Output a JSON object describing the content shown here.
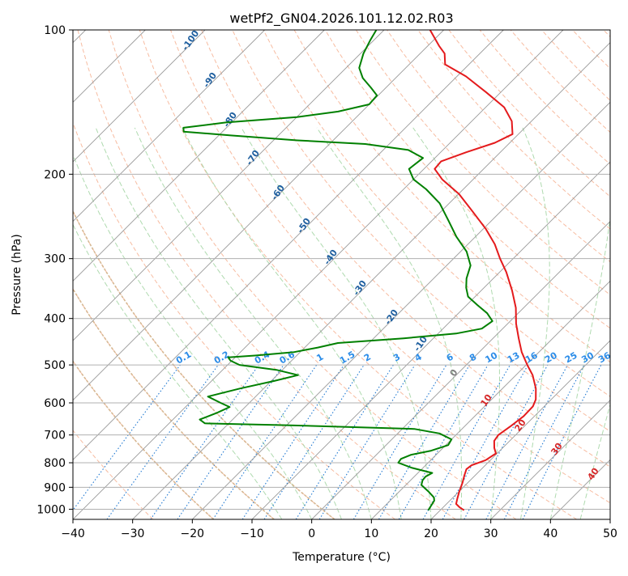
{
  "chart_data": {
    "type": "skew-t",
    "title": "wetPf2_GN04.2026.101.12.02.R03",
    "xlabel": "Temperature (°C)",
    "ylabel": "Pressure (hPa)",
    "xlim": [
      -40,
      50
    ],
    "ylim_hpa": [
      1050,
      100
    ],
    "x_ticks": [
      "−40",
      "−30",
      "−20",
      "−10",
      "0",
      "10",
      "20",
      "30",
      "40",
      "50"
    ],
    "x_tick_values": [
      -40,
      -30,
      -20,
      -10,
      0,
      10,
      20,
      30,
      40,
      50
    ],
    "y_ticks": [
      "100",
      "200",
      "300",
      "400",
      "500",
      "600",
      "700",
      "800",
      "900",
      "1000"
    ],
    "y_tick_values": [
      100,
      200,
      300,
      400,
      500,
      600,
      700,
      800,
      900,
      1000
    ],
    "grid": true,
    "colors": {
      "temperature": "#e41a1c",
      "dewpoint": "#008000",
      "isotherm": "#999999",
      "dry_adiabat": "#f4a582",
      "moist_adiabat": "#a6d6a6",
      "mixing_ratio": "#1f78d1",
      "lcl_curve": "#d2b48c",
      "potential_temp_label": "#1f5f9f",
      "isotherm_warm_label": "#d62728"
    },
    "series": [
      {
        "name": "",
        "key": "temperature",
        "points": [
          {
            "p": 1005,
            "t": 24.0
          },
          {
            "p": 990,
            "t": 22.7
          },
          {
            "p": 975,
            "t": 21.6
          },
          {
            "p": 950,
            "t": 20.9
          },
          {
            "p": 920,
            "t": 20.1
          },
          {
            "p": 880,
            "t": 19.1
          },
          {
            "p": 850,
            "t": 18.2
          },
          {
            "p": 825,
            "t": 17.5
          },
          {
            "p": 810,
            "t": 17.7
          },
          {
            "p": 790,
            "t": 19.2
          },
          {
            "p": 765,
            "t": 19.8
          },
          {
            "p": 745,
            "t": 18.6
          },
          {
            "p": 720,
            "t": 17.4
          },
          {
            "p": 700,
            "t": 17.1
          },
          {
            "p": 670,
            "t": 17.7
          },
          {
            "p": 640,
            "t": 18.2
          },
          {
            "p": 610,
            "t": 18.1
          },
          {
            "p": 590,
            "t": 17.4
          },
          {
            "p": 560,
            "t": 15.6
          },
          {
            "p": 525,
            "t": 12.8
          },
          {
            "p": 500,
            "t": 10.2
          },
          {
            "p": 470,
            "t": 7.1
          },
          {
            "p": 440,
            "t": 4.3
          },
          {
            "p": 410,
            "t": 1.4
          },
          {
            "p": 380,
            "t": -1.3
          },
          {
            "p": 350,
            "t": -4.8
          },
          {
            "p": 320,
            "t": -8.9
          },
          {
            "p": 300,
            "t": -12.2
          },
          {
            "p": 280,
            "t": -15.5
          },
          {
            "p": 260,
            "t": -19.6
          },
          {
            "p": 240,
            "t": -24.5
          },
          {
            "p": 220,
            "t": -29.9
          },
          {
            "p": 205,
            "t": -35.2
          },
          {
            "p": 195,
            "t": -38.2
          },
          {
            "p": 188,
            "t": -38.4
          },
          {
            "p": 180,
            "t": -35.7
          },
          {
            "p": 172,
            "t": -32.5
          },
          {
            "p": 165,
            "t": -31.0
          },
          {
            "p": 155,
            "t": -33.3
          },
          {
            "p": 145,
            "t": -36.9
          },
          {
            "p": 135,
            "t": -42.4
          },
          {
            "p": 125,
            "t": -48.5
          },
          {
            "p": 118,
            "t": -54.0
          },
          {
            "p": 112,
            "t": -55.9
          },
          {
            "p": 108,
            "t": -58.1
          },
          {
            "p": 100,
            "t": -62.3
          }
        ]
      },
      {
        "name": "",
        "key": "dewpoint",
        "points": [
          {
            "p": 1005,
            "t": 18.0
          },
          {
            "p": 990,
            "t": 17.8
          },
          {
            "p": 960,
            "t": 17.4
          },
          {
            "p": 945,
            "t": 16.8
          },
          {
            "p": 920,
            "t": 15.0
          },
          {
            "p": 890,
            "t": 12.6
          },
          {
            "p": 870,
            "t": 12.0
          },
          {
            "p": 855,
            "t": 11.9
          },
          {
            "p": 840,
            "t": 12.4
          },
          {
            "p": 820,
            "t": 8.2
          },
          {
            "p": 800,
            "t": 5.0
          },
          {
            "p": 785,
            "t": 4.8
          },
          {
            "p": 770,
            "t": 5.8
          },
          {
            "p": 755,
            "t": 8.5
          },
          {
            "p": 735,
            "t": 10.4
          },
          {
            "p": 715,
            "t": 10.0
          },
          {
            "p": 695,
            "t": 7.0
          },
          {
            "p": 680,
            "t": 2.0
          },
          {
            "p": 668,
            "t": -20.0
          },
          {
            "p": 662,
            "t": -34.0
          },
          {
            "p": 650,
            "t": -35.5
          },
          {
            "p": 630,
            "t": -33.8
          },
          {
            "p": 612,
            "t": -32.6
          },
          {
            "p": 600,
            "t": -34.8
          },
          {
            "p": 582,
            "t": -38.0
          },
          {
            "p": 560,
            "t": -34.0
          },
          {
            "p": 540,
            "t": -29.5
          },
          {
            "p": 525,
            "t": -26.5
          },
          {
            "p": 512,
            "t": -31.0
          },
          {
            "p": 500,
            "t": -38.0
          },
          {
            "p": 490,
            "t": -40.2
          },
          {
            "p": 482,
            "t": -41.2
          },
          {
            "p": 478,
            "t": -37.0
          },
          {
            "p": 470,
            "t": -31.0
          },
          {
            "p": 460,
            "t": -27.8
          },
          {
            "p": 450,
            "t": -25.2
          },
          {
            "p": 440,
            "t": -15.0
          },
          {
            "p": 430,
            "t": -7.0
          },
          {
            "p": 420,
            "t": -3.5
          },
          {
            "p": 405,
            "t": -3.0
          },
          {
            "p": 390,
            "t": -5.2
          },
          {
            "p": 375,
            "t": -8.2
          },
          {
            "p": 360,
            "t": -11.2
          },
          {
            "p": 345,
            "t": -13.0
          },
          {
            "p": 330,
            "t": -14.5
          },
          {
            "p": 310,
            "t": -16.0
          },
          {
            "p": 290,
            "t": -19.0
          },
          {
            "p": 270,
            "t": -23.2
          },
          {
            "p": 250,
            "t": -27.2
          },
          {
            "p": 230,
            "t": -31.6
          },
          {
            "p": 215,
            "t": -36.2
          },
          {
            "p": 205,
            "t": -40.0
          },
          {
            "p": 195,
            "t": -42.5
          },
          {
            "p": 185,
            "t": -42.0
          },
          {
            "p": 178,
            "t": -45.8
          },
          {
            "p": 173,
            "t": -54.0
          },
          {
            "p": 170,
            "t": -66.0
          },
          {
            "p": 166,
            "t": -78.0
          },
          {
            "p": 163,
            "t": -86.5
          },
          {
            "p": 160,
            "t": -87.2
          },
          {
            "p": 156,
            "t": -81.0
          },
          {
            "p": 152,
            "t": -70.0
          },
          {
            "p": 148,
            "t": -64.0
          },
          {
            "p": 143,
            "t": -60.0
          },
          {
            "p": 137,
            "t": -60.2
          },
          {
            "p": 132,
            "t": -62.5
          },
          {
            "p": 126,
            "t": -65.5
          },
          {
            "p": 120,
            "t": -67.8
          },
          {
            "p": 112,
            "t": -69.5
          },
          {
            "p": 105,
            "t": -70.6
          },
          {
            "p": 100,
            "t": -71.3
          }
        ]
      }
    ],
    "dry_adiabat_labels": [
      "-100",
      "-90",
      "-80",
      "-70",
      "-60",
      "-50",
      "-40",
      "-30",
      "-20",
      "-10",
      "0",
      "10",
      "20",
      "30",
      "40"
    ],
    "dry_adiabat_label_values": [
      -100,
      -90,
      -80,
      -70,
      -60,
      -50,
      -40,
      -30,
      -20,
      -10,
      0,
      10,
      20,
      30,
      40
    ],
    "mixing_ratio_labels": [
      "0.1",
      "0.2",
      "0.4",
      "0.6",
      "1",
      "1.5",
      "2",
      "3",
      "4",
      "6",
      "8",
      "10",
      "13",
      "16",
      "20",
      "25",
      "30",
      "36"
    ],
    "mixing_ratio_label_values": [
      0.1,
      0.2,
      0.4,
      0.6,
      1,
      1.5,
      2,
      3,
      4,
      6,
      8,
      10,
      13,
      16,
      20,
      25,
      30,
      36
    ]
  }
}
